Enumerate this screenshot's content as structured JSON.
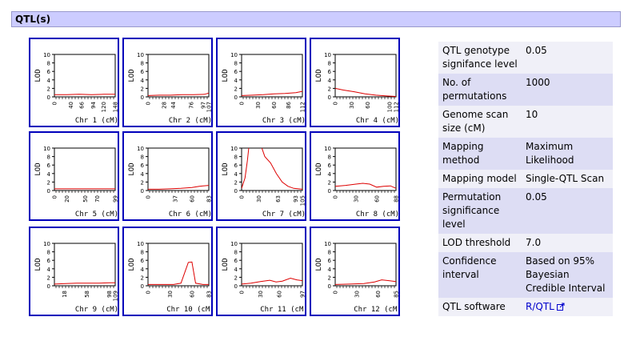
{
  "section": {
    "title": "QTL(s)"
  },
  "plots": [
    {
      "chr_label": "Chr 1  (cM)",
      "y_label": "LOD",
      "y_ticks": [
        "0",
        "2",
        "4",
        "6",
        "8",
        "10"
      ],
      "x_ticks": [
        0,
        40,
        66,
        94,
        120,
        148
      ],
      "x_max": 148,
      "curve": [
        [
          0,
          0.5
        ],
        [
          30,
          0.5
        ],
        [
          60,
          0.6
        ],
        [
          90,
          0.5
        ],
        [
          120,
          0.6
        ],
        [
          148,
          0.6
        ]
      ]
    },
    {
      "chr_label": "Chr 2  (cM)",
      "y_label": "LOD",
      "y_ticks": [
        "0",
        "2",
        "4",
        "6",
        "8",
        "10"
      ],
      "x_ticks": [
        0,
        28,
        44,
        76,
        97,
        107
      ],
      "x_max": 107,
      "curve": [
        [
          0,
          0.3
        ],
        [
          20,
          0.4
        ],
        [
          40,
          0.4
        ],
        [
          60,
          0.5
        ],
        [
          80,
          0.5
        ],
        [
          100,
          0.6
        ],
        [
          107,
          0.9
        ]
      ]
    },
    {
      "chr_label": "Chr 3  (cM)",
      "y_label": "LOD",
      "y_ticks": [
        "0",
        "2",
        "4",
        "6",
        "8",
        "10"
      ],
      "x_ticks": [
        0,
        30,
        60,
        86,
        112
      ],
      "x_max": 112,
      "curve": [
        [
          0,
          0.3
        ],
        [
          20,
          0.4
        ],
        [
          40,
          0.5
        ],
        [
          60,
          0.7
        ],
        [
          80,
          0.8
        ],
        [
          100,
          1.0
        ],
        [
          112,
          1.3
        ]
      ]
    },
    {
      "chr_label": "Chr 4  (cM)",
      "y_label": "LOD",
      "y_ticks": [
        "0",
        "2",
        "4",
        "6",
        "8",
        "10"
      ],
      "x_ticks": [
        0,
        30,
        60,
        100,
        112
      ],
      "x_max": 112,
      "curve": [
        [
          0,
          2.0
        ],
        [
          15,
          1.6
        ],
        [
          35,
          1.2
        ],
        [
          55,
          0.7
        ],
        [
          75,
          0.4
        ],
        [
          95,
          0.2
        ],
        [
          112,
          0.1
        ]
      ]
    },
    {
      "chr_label": "Chr 5  (cM)",
      "y_label": "LOD",
      "y_ticks": [
        "0",
        "2",
        "4",
        "6",
        "8",
        "10"
      ],
      "x_ticks": [
        0,
        20,
        50,
        70,
        99
      ],
      "x_max": 99,
      "curve": [
        [
          0,
          0.4
        ],
        [
          20,
          0.4
        ],
        [
          40,
          0.4
        ],
        [
          60,
          0.4
        ],
        [
          80,
          0.4
        ],
        [
          99,
          0.4
        ]
      ]
    },
    {
      "chr_label": "Chr 6  (cM)",
      "y_label": "LOD",
      "y_ticks": [
        "0",
        "2",
        "4",
        "6",
        "8",
        "10"
      ],
      "x_ticks": [
        0,
        37,
        60,
        83
      ],
      "x_max": 83,
      "curve": [
        [
          0,
          0.3
        ],
        [
          15,
          0.3
        ],
        [
          30,
          0.4
        ],
        [
          45,
          0.5
        ],
        [
          60,
          0.7
        ],
        [
          70,
          1.0
        ],
        [
          83,
          1.2
        ]
      ]
    },
    {
      "chr_label": "Chr 7  (cM)",
      "y_label": "LOD",
      "y_ticks": [
        "0",
        "2",
        "4",
        "6",
        "8",
        "10"
      ],
      "x_ticks": [
        0,
        30,
        63,
        93,
        105
      ],
      "x_max": 105,
      "curve": [
        [
          0,
          0.5
        ],
        [
          6,
          3
        ],
        [
          10,
          7
        ],
        [
          14,
          12
        ],
        [
          22,
          13
        ],
        [
          30,
          12
        ],
        [
          40,
          8
        ],
        [
          50,
          6.5
        ],
        [
          60,
          4
        ],
        [
          70,
          2
        ],
        [
          80,
          1
        ],
        [
          90,
          0.5
        ],
        [
          105,
          0.3
        ]
      ]
    },
    {
      "chr_label": "Chr 8  (cM)",
      "y_label": "LOD",
      "y_ticks": [
        "0",
        "2",
        "4",
        "6",
        "8",
        "10"
      ],
      "x_ticks": [
        0,
        30,
        60,
        88
      ],
      "x_max": 88,
      "curve": [
        [
          0,
          1.0
        ],
        [
          15,
          1.2
        ],
        [
          30,
          1.5
        ],
        [
          40,
          1.7
        ],
        [
          50,
          1.5
        ],
        [
          60,
          0.8
        ],
        [
          70,
          1.0
        ],
        [
          80,
          1.1
        ],
        [
          88,
          0.5
        ]
      ]
    },
    {
      "chr_label": "Chr 9  (cM)",
      "y_label": "LOD",
      "y_ticks": [
        "0",
        "2",
        "4",
        "6",
        "8",
        "10"
      ],
      "x_ticks": [
        18,
        58,
        98,
        109
      ],
      "x_max": 109,
      "curve": [
        [
          0,
          0.4
        ],
        [
          20,
          0.5
        ],
        [
          40,
          0.6
        ],
        [
          60,
          0.6
        ],
        [
          80,
          0.6
        ],
        [
          100,
          0.7
        ],
        [
          109,
          0.7
        ]
      ]
    },
    {
      "chr_label": "Chr 10  (cM)",
      "y_label": "LOD",
      "y_ticks": [
        "0",
        "2",
        "4",
        "6",
        "8",
        "10"
      ],
      "x_ticks": [
        0,
        30,
        60,
        83
      ],
      "x_max": 83,
      "curve": [
        [
          0,
          0.3
        ],
        [
          20,
          0.3
        ],
        [
          35,
          0.3
        ],
        [
          45,
          0.6
        ],
        [
          55,
          5.5
        ],
        [
          60,
          5.6
        ],
        [
          65,
          0.6
        ],
        [
          75,
          0.3
        ],
        [
          83,
          0.3
        ]
      ]
    },
    {
      "chr_label": "Chr 11  (cM)",
      "y_label": "LOD",
      "y_ticks": [
        "0",
        "2",
        "4",
        "6",
        "8",
        "10"
      ],
      "x_ticks": [
        0,
        30,
        60,
        97
      ],
      "x_max": 97,
      "curve": [
        [
          0,
          0.4
        ],
        [
          15,
          0.6
        ],
        [
          30,
          1.0
        ],
        [
          45,
          1.3
        ],
        [
          55,
          0.9
        ],
        [
          65,
          1.1
        ],
        [
          78,
          1.8
        ],
        [
          88,
          1.4
        ],
        [
          97,
          1.2
        ]
      ]
    },
    {
      "chr_label": "Chr 12  (cM)",
      "y_label": "LOD",
      "y_ticks": [
        "0",
        "2",
        "4",
        "6",
        "8",
        "10"
      ],
      "x_ticks": [
        0,
        30,
        60,
        85
      ],
      "x_max": 85,
      "curve": [
        [
          0,
          0.3
        ],
        [
          20,
          0.4
        ],
        [
          40,
          0.5
        ],
        [
          55,
          0.9
        ],
        [
          65,
          1.4
        ],
        [
          75,
          1.2
        ],
        [
          85,
          1.0
        ]
      ]
    }
  ],
  "params": {
    "rows": [
      {
        "label": "QTL genotype signifance level",
        "value": "0.05"
      },
      {
        "label": "No. of permutations",
        "value": "1000"
      },
      {
        "label": "Genome scan size (cM)",
        "value": "10"
      },
      {
        "label": "Mapping method",
        "value": "Maximum Likelihood"
      },
      {
        "label": "Mapping model",
        "value": "Single-QTL Scan"
      },
      {
        "label": "Permutation significance level",
        "value": "0.05"
      },
      {
        "label": "LOD threshold",
        "value": "7.0"
      },
      {
        "label": "Confidence interval",
        "value": "Based on 95% Bayesian Credible Interval"
      }
    ],
    "software": {
      "label": "QTL software",
      "link_text": "R/QTL",
      "icon": "external-link-icon"
    }
  },
  "colors": {
    "header_bg": "#ccccff",
    "panel_border": "#0000bb",
    "curve": "#dd0000",
    "link": "#0000cc"
  }
}
